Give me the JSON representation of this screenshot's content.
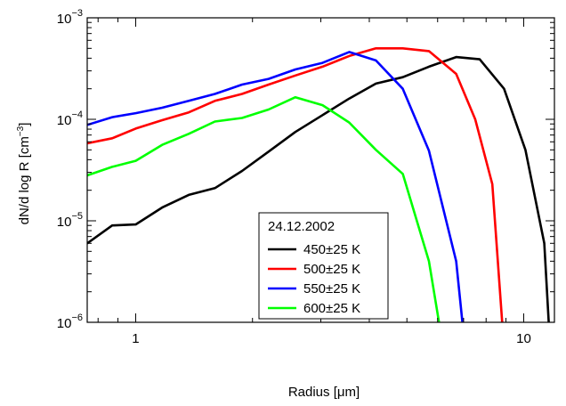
{
  "chart_data": {
    "type": "line",
    "title": "",
    "xlabel": "Radius [μm]",
    "ylabel": "dN/d log R [cm",
    "ylabel_sup": "−3",
    "ylabel_end": "]",
    "xscale": "log",
    "yscale": "log",
    "xlim": [
      0.75,
      12.0
    ],
    "ylim": [
      1e-06,
      0.001
    ],
    "grid": false,
    "legend": {
      "title": "24.12.2002",
      "placement": "lower-center"
    },
    "x_ticks": [
      {
        "value": 1,
        "label": "1"
      },
      {
        "value": 10,
        "label": "10"
      }
    ],
    "y_ticks": [
      {
        "value": 1e-06,
        "base": "10",
        "exp": "−6"
      },
      {
        "value": 1e-05,
        "base": "10",
        "exp": "−5"
      },
      {
        "value": 0.0001,
        "base": "10",
        "exp": "−4"
      },
      {
        "value": 0.001,
        "base": "10",
        "exp": "−3"
      }
    ],
    "series": [
      {
        "name": "450±25 K",
        "color": "#000000",
        "points": [
          [
            0.75,
            6e-06
          ],
          [
            0.87,
            9e-06
          ],
          [
            1.0,
            9.2e-06
          ],
          [
            1.17,
            1.35e-05
          ],
          [
            1.37,
            1.8e-05
          ],
          [
            1.6,
            2.1e-05
          ],
          [
            1.88,
            3.1e-05
          ],
          [
            2.2,
            4.8e-05
          ],
          [
            2.58,
            7.5e-05
          ],
          [
            3.03,
            0.00011
          ],
          [
            3.55,
            0.00016
          ],
          [
            4.16,
            0.000225
          ],
          [
            4.88,
            0.00026
          ],
          [
            5.7,
            0.00033
          ],
          [
            6.7,
            0.00041
          ],
          [
            7.7,
            0.00039
          ],
          [
            8.9,
            0.0002
          ],
          [
            10.1,
            5e-05
          ],
          [
            11.3,
            6e-06
          ],
          [
            11.6,
            1e-06
          ]
        ]
      },
      {
        "name": "500±25 K",
        "color": "#ff0000",
        "points": [
          [
            0.75,
            5.8e-05
          ],
          [
            0.87,
            6.5e-05
          ],
          [
            1.0,
            8.1e-05
          ],
          [
            1.17,
            9.8e-05
          ],
          [
            1.37,
            0.000117
          ],
          [
            1.6,
            0.000152
          ],
          [
            1.88,
            0.000178
          ],
          [
            2.2,
            0.00022
          ],
          [
            2.58,
            0.00027
          ],
          [
            3.03,
            0.00033
          ],
          [
            3.55,
            0.00042
          ],
          [
            4.16,
            0.0005
          ],
          [
            4.88,
            0.0005
          ],
          [
            5.7,
            0.00047
          ],
          [
            6.7,
            0.00028
          ],
          [
            7.5,
            0.0001
          ],
          [
            8.3,
            2.3e-05
          ],
          [
            8.8,
            1e-06
          ]
        ]
      },
      {
        "name": "550±25 K",
        "color": "#0000ff",
        "points": [
          [
            0.75,
            8.8e-05
          ],
          [
            0.87,
            0.000105
          ],
          [
            1.0,
            0.000115
          ],
          [
            1.17,
            0.00013
          ],
          [
            1.37,
            0.000152
          ],
          [
            1.6,
            0.000178
          ],
          [
            1.88,
            0.00022
          ],
          [
            2.2,
            0.00025
          ],
          [
            2.58,
            0.00031
          ],
          [
            3.03,
            0.00036
          ],
          [
            3.55,
            0.00046
          ],
          [
            4.16,
            0.00038
          ],
          [
            4.88,
            0.0002
          ],
          [
            5.7,
            4.9e-05
          ],
          [
            6.7,
            4e-06
          ],
          [
            6.95,
            1e-06
          ]
        ]
      },
      {
        "name": "600±25 K",
        "color": "#00ff00",
        "points": [
          [
            0.75,
            2.8e-05
          ],
          [
            0.87,
            3.4e-05
          ],
          [
            1.0,
            3.9e-05
          ],
          [
            1.17,
            5.6e-05
          ],
          [
            1.37,
            7.2e-05
          ],
          [
            1.6,
            9.5e-05
          ],
          [
            1.88,
            0.000103
          ],
          [
            2.2,
            0.000125
          ],
          [
            2.58,
            0.000165
          ],
          [
            3.03,
            0.000138
          ],
          [
            3.55,
            9.3e-05
          ],
          [
            4.16,
            5e-05
          ],
          [
            4.88,
            2.9e-05
          ],
          [
            5.7,
            4e-06
          ],
          [
            6.05,
            1e-06
          ]
        ]
      }
    ]
  }
}
